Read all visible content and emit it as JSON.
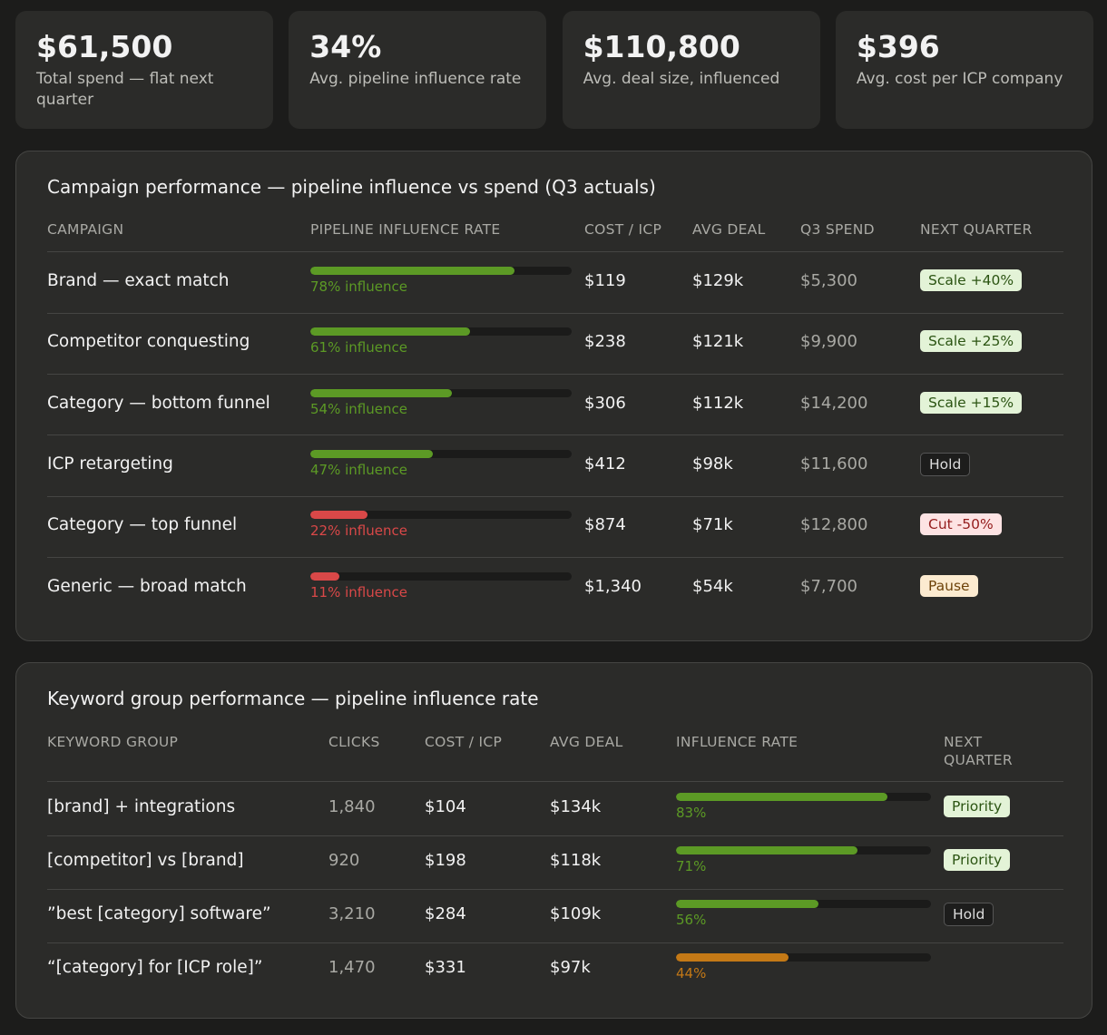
{
  "kpis": [
    {
      "value": "$61,500",
      "label": "Total spend — flat next quarter"
    },
    {
      "value": "34%",
      "label": "Avg. pipeline influence rate"
    },
    {
      "value": "$110,800",
      "label": "Avg. deal size, influenced"
    },
    {
      "value": "$396",
      "label": "Avg. cost per ICP company"
    }
  ],
  "campaigns": {
    "title": "Campaign performance — pipeline influence vs spend (Q3 actuals)",
    "xlim": [
      0,
      100
    ],
    "columns": [
      "CAMPAIGN",
      "PIPELINE INFLUENCE RATE",
      "COST / ICP",
      "AVG DEAL",
      "Q3 SPEND",
      "NEXT QUARTER"
    ],
    "rows": [
      {
        "name": "Brand — exact match",
        "rate": 78,
        "rate_label": "78% influence",
        "color": "#5c9a25",
        "cost_icp": "$119",
        "avg_deal": "$129k",
        "spend": "$5,300",
        "next": "Scale +40%",
        "tone": "green"
      },
      {
        "name": "Competitor conquesting",
        "rate": 61,
        "rate_label": "61% influence",
        "color": "#5c9a25",
        "cost_icp": "$238",
        "avg_deal": "$121k",
        "spend": "$9,900",
        "next": "Scale +25%",
        "tone": "green"
      },
      {
        "name": "Category — bottom funnel",
        "rate": 54,
        "rate_label": "54% influence",
        "color": "#5c9a25",
        "cost_icp": "$306",
        "avg_deal": "$112k",
        "spend": "$14,200",
        "next": "Scale +15%",
        "tone": "green"
      },
      {
        "name": "ICP retargeting",
        "rate": 47,
        "rate_label": "47% influence",
        "color": "#5c9a25",
        "cost_icp": "$412",
        "avg_deal": "$98k",
        "spend": "$11,600",
        "next": "Hold",
        "tone": "neutral"
      },
      {
        "name": "Category — top funnel",
        "rate": 22,
        "rate_label": "22% influence",
        "color": "#d94848",
        "cost_icp": "$874",
        "avg_deal": "$71k",
        "spend": "$12,800",
        "next": "Cut -50%",
        "tone": "red"
      },
      {
        "name": "Generic — broad match",
        "rate": 11,
        "rate_label": "11% influence",
        "color": "#d94848",
        "cost_icp": "$1,340",
        "avg_deal": "$54k",
        "spend": "$7,700",
        "next": "Pause",
        "tone": "amber"
      }
    ]
  },
  "keywords": {
    "title": "Keyword group performance — pipeline influence rate",
    "xlim": [
      0,
      100
    ],
    "columns": [
      "KEYWORD GROUP",
      "CLICKS",
      "COST / ICP",
      "AVG DEAL",
      "INFLUENCE RATE",
      "NEXT QUARTER"
    ],
    "rows": [
      {
        "name": "[brand] + integrations",
        "clicks": "1,840",
        "cost_icp": "$104",
        "avg_deal": "$134k",
        "rate": 83,
        "rate_label": "83%",
        "color": "#5c9a25",
        "next": "Priority",
        "tone": "green"
      },
      {
        "name": "[competitor] vs [brand]",
        "clicks": "920",
        "cost_icp": "$198",
        "avg_deal": "$118k",
        "rate": 71,
        "rate_label": "71%",
        "color": "#5c9a25",
        "next": "Priority",
        "tone": "green"
      },
      {
        "name": "”best [category] software”",
        "clicks": "3,210",
        "cost_icp": "$284",
        "avg_deal": "$109k",
        "rate": 56,
        "rate_label": "56%",
        "color": "#5c9a25",
        "next": "Hold",
        "tone": "neutral"
      },
      {
        "name": "“[category] for [ICP role]”",
        "clicks": "1,470",
        "cost_icp": "$331",
        "avg_deal": "$97k",
        "rate": 44,
        "rate_label": "44%",
        "color": "#c47916",
        "next": null,
        "tone": null
      }
    ]
  }
}
